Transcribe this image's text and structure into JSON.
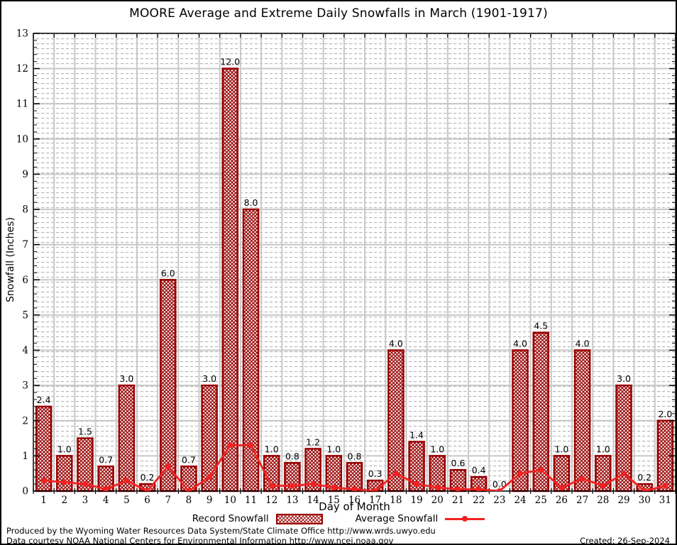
{
  "title": "MOORE Average and Extreme Daily Snowfalls in March (1901-1917)",
  "chart_data": {
    "type": "bar",
    "title": "MOORE Average and Extreme Daily Snowfalls in March (1901-1917)",
    "xlabel": "Day of Month",
    "ylabel": "Snowfall (Inches)",
    "ylim": [
      0,
      13
    ],
    "ytick_step": 1,
    "grid": true,
    "legend_position": "bottom",
    "categories": [
      1,
      2,
      3,
      4,
      5,
      6,
      7,
      8,
      9,
      10,
      11,
      12,
      13,
      14,
      15,
      16,
      17,
      18,
      19,
      20,
      21,
      22,
      23,
      24,
      25,
      26,
      27,
      28,
      29,
      30,
      31
    ],
    "series": [
      {
        "name": "Record Snowfall",
        "type": "bar",
        "values": [
          2.4,
          1.0,
          1.5,
          0.7,
          3.0,
          0.2,
          6.0,
          0.7,
          3.0,
          12.0,
          8.0,
          1.0,
          0.8,
          1.2,
          1.0,
          0.8,
          0.3,
          4.0,
          1.4,
          1.0,
          0.6,
          0.4,
          0.0,
          4.0,
          4.5,
          1.0,
          4.0,
          1.0,
          3.0,
          0.2,
          2.0
        ]
      },
      {
        "name": "Average Snowfall",
        "type": "line",
        "values": [
          0.3,
          0.25,
          0.2,
          0.05,
          0.3,
          0.0,
          0.7,
          0.0,
          0.4,
          1.3,
          1.3,
          0.15,
          0.15,
          0.2,
          0.1,
          0.05,
          0.0,
          0.5,
          0.2,
          0.1,
          0.05,
          0.05,
          0.0,
          0.5,
          0.6,
          0.1,
          0.35,
          0.15,
          0.5,
          0.0,
          0.15
        ]
      }
    ]
  },
  "colors": {
    "bar": "#990000",
    "hatch": "#9c0f0f",
    "line": "#f22222",
    "grid": "#c8c8c8",
    "minor_grid": "#b9b9b9"
  },
  "footer": {
    "line1": "Produced by the Wyoming Water Resources Data System/State Climate Office http://www.wrds.uwyo.edu",
    "line2": "Data courtesy NOAA National Centers for Environmental Information http://www.ncei.noaa.gov",
    "created": "Created: 26-Sep-2024"
  }
}
